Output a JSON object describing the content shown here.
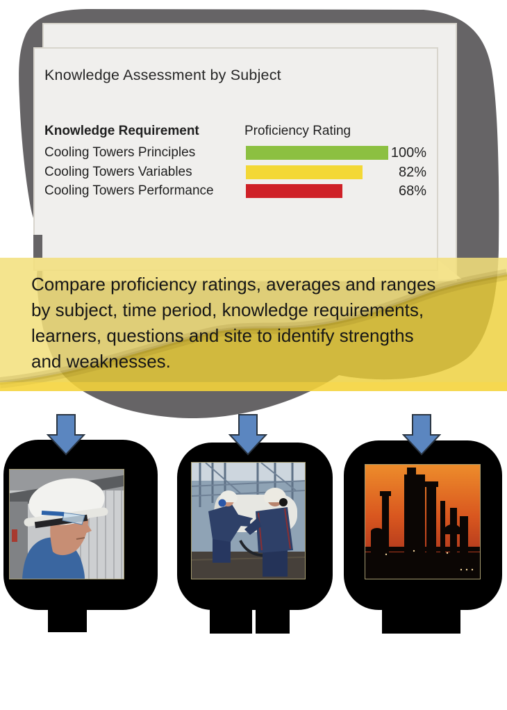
{
  "report": {
    "title": "Knowledge Assessment by Subject",
    "columns": {
      "requirement": "Knowledge Requirement",
      "rating": "Proficiency Rating"
    }
  },
  "chart_data": {
    "type": "bar",
    "orientation": "horizontal",
    "title": "Knowledge Assessment by Subject",
    "series_label": "Proficiency Rating",
    "categories": [
      "Cooling Towers Principles",
      "Cooling Towers Variables",
      "Cooling Towers Performance"
    ],
    "values": [
      100,
      82,
      68
    ],
    "value_labels": [
      "100%",
      "82%",
      "68%"
    ],
    "bar_colors": [
      "#8cc041",
      "#f3d836",
      "#cf2127"
    ],
    "xlim": [
      0,
      100
    ],
    "grid": false,
    "legend": false
  },
  "banner": {
    "lines": [
      "Compare proficiency ratings, averages and ranges",
      "by subject, time period, knowledge requirements,",
      "learners, questions and site to identify strengths",
      "and weaknesses."
    ]
  },
  "figures": [
    {
      "name": "technician-portrait-photo",
      "description": "worker in white hard hat and safety glasses"
    },
    {
      "name": "plant-maintenance-photo",
      "description": "two workers in navy coveralls at industrial plant"
    },
    {
      "name": "refinery-sunset-photo",
      "description": "refinery towers silhouetted against orange sky"
    }
  ],
  "colors": {
    "blob": "#666466",
    "page_background": "#f0efed",
    "banner_gold": "#eecd34",
    "arrow_blue": "#5b86c0",
    "bar_green": "#8cc041",
    "bar_yellow": "#f3d836",
    "bar_red": "#cf2127"
  }
}
